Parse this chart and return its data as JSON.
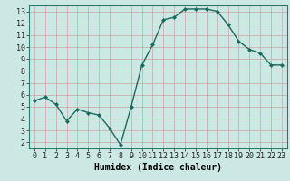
{
  "x": [
    0,
    1,
    2,
    3,
    4,
    5,
    6,
    7,
    8,
    9,
    10,
    11,
    12,
    13,
    14,
    15,
    16,
    17,
    18,
    19,
    20,
    21,
    22,
    23
  ],
  "y": [
    5.5,
    5.8,
    5.2,
    3.8,
    4.8,
    4.5,
    4.3,
    3.2,
    1.8,
    5.0,
    8.5,
    10.2,
    12.3,
    12.5,
    13.2,
    13.2,
    13.2,
    13.0,
    11.9,
    10.5,
    9.8,
    9.5,
    8.5,
    8.5
  ],
  "xlabel": "Humidex (Indice chaleur)",
  "xlim": [
    -0.5,
    23.5
  ],
  "ylim": [
    1.5,
    13.5
  ],
  "yticks": [
    2,
    3,
    4,
    5,
    6,
    7,
    8,
    9,
    10,
    11,
    12,
    13
  ],
  "xticks": [
    0,
    1,
    2,
    3,
    4,
    5,
    6,
    7,
    8,
    9,
    10,
    11,
    12,
    13,
    14,
    15,
    16,
    17,
    18,
    19,
    20,
    21,
    22,
    23
  ],
  "bg_color": "#cce8e4",
  "grid_major_color": "#b0d0cc",
  "grid_minor_color": "#c8e4e0",
  "line_color": "#1a6b5e",
  "marker_color": "#1a6b5e",
  "tick_label_fontsize": 6.0,
  "xlabel_fontsize": 7.0
}
